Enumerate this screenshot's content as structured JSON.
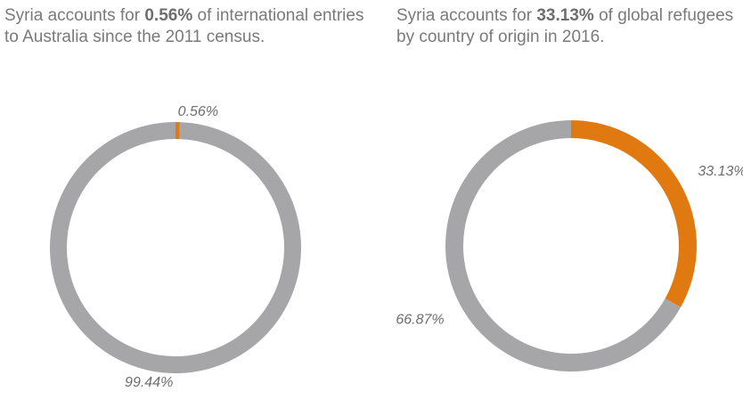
{
  "chart_data": [
    {
      "type": "donut",
      "title": {
        "before": "Syria accounts for ",
        "bold": "0.56%",
        "after": " of international entries to Australia since the 2011 census."
      },
      "values": [
        0.56,
        99.44
      ],
      "value_labels": [
        "0.56%",
        "99.44%"
      ],
      "colors": [
        "#e07a10",
        "#a6a6a9"
      ]
    },
    {
      "type": "donut",
      "title": {
        "before": "Syria accounts for ",
        "bold": "33.13%",
        "after": " of global refugees by country of origin in 2016."
      },
      "values": [
        33.13,
        66.87
      ],
      "value_labels": [
        "33.13%",
        "66.87%"
      ],
      "colors": [
        "#e07a10",
        "#a6a6a9"
      ]
    }
  ]
}
